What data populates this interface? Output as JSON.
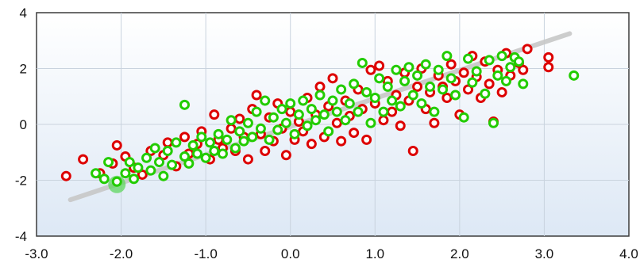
{
  "chart_data": {
    "type": "scatter",
    "title": "",
    "xlabel": "",
    "ylabel": "",
    "xlim": [
      -3,
      4
    ],
    "ylim": [
      -4,
      4
    ],
    "x_ticks": [
      "-3.0",
      "-2.0",
      "-1.0",
      "0.0",
      "1.0",
      "2.0",
      "3.0",
      "4.0"
    ],
    "y_ticks": [
      "-4",
      "-2",
      "0",
      "2",
      "4"
    ],
    "grid": true,
    "legend": "none",
    "series": [
      {
        "color": "#dd0000",
        "points": [
          [
            -2.65,
            -1.85
          ],
          [
            -2.45,
            -1.25
          ],
          [
            -2.25,
            -1.75
          ],
          [
            -2.1,
            -1.4
          ],
          [
            -2.05,
            -0.75
          ],
          [
            -1.95,
            -1.15
          ],
          [
            -1.85,
            -1.55
          ],
          [
            -1.75,
            -1.8
          ],
          [
            -1.65,
            -0.95
          ],
          [
            -1.5,
            -1.1
          ],
          [
            -1.45,
            -0.65
          ],
          [
            -1.35,
            -1.5
          ],
          [
            -1.25,
            -0.45
          ],
          [
            -1.2,
            -1.05
          ],
          [
            -1.1,
            -0.7
          ],
          [
            -1.05,
            -0.25
          ],
          [
            -0.95,
            -1.25
          ],
          [
            -0.9,
            0.35
          ],
          [
            -0.85,
            -0.55
          ],
          [
            -0.8,
            -0.85
          ],
          [
            -0.7,
            -0.15
          ],
          [
            -0.65,
            -0.95
          ],
          [
            -0.6,
            0.2
          ],
          [
            -0.55,
            -0.45
          ],
          [
            -0.5,
            -1.25
          ],
          [
            -0.45,
            0.55
          ],
          [
            -0.4,
            1.05
          ],
          [
            -0.35,
            -0.35
          ],
          [
            -0.3,
            -0.95
          ],
          [
            -0.25,
            0.25
          ],
          [
            -0.2,
            -0.6
          ],
          [
            -0.15,
            0.75
          ],
          [
            -0.1,
            -0.15
          ],
          [
            -0.05,
            -1.1
          ],
          [
            0.0,
            0.45
          ],
          [
            0.05,
            -0.55
          ],
          [
            0.1,
            0.1
          ],
          [
            0.15,
            -0.25
          ],
          [
            0.2,
            0.95
          ],
          [
            0.25,
            -0.7
          ],
          [
            0.3,
            0.35
          ],
          [
            0.35,
            1.35
          ],
          [
            0.4,
            -0.45
          ],
          [
            0.45,
            0.65
          ],
          [
            0.5,
            1.65
          ],
          [
            0.55,
            0.05
          ],
          [
            0.6,
            -0.6
          ],
          [
            0.65,
            0.85
          ],
          [
            0.7,
            0.3
          ],
          [
            0.75,
            -0.3
          ],
          [
            0.8,
            1.25
          ],
          [
            0.85,
            0.55
          ],
          [
            0.9,
            -0.55
          ],
          [
            0.95,
            1.95
          ],
          [
            1.0,
            0.75
          ],
          [
            1.05,
            2.1
          ],
          [
            1.1,
            0.15
          ],
          [
            1.15,
            1.55
          ],
          [
            1.2,
            0.45
          ],
          [
            1.25,
            1.05
          ],
          [
            1.3,
            -0.05
          ],
          [
            1.35,
            1.85
          ],
          [
            1.4,
            0.85
          ],
          [
            1.45,
            -0.95
          ],
          [
            1.5,
            1.35
          ],
          [
            1.55,
            2.0
          ],
          [
            1.6,
            0.55
          ],
          [
            1.65,
            1.15
          ],
          [
            1.7,
            0.05
          ],
          [
            1.75,
            1.75
          ],
          [
            1.8,
            1.35
          ],
          [
            1.85,
            0.95
          ],
          [
            1.9,
            2.15
          ],
          [
            1.95,
            1.55
          ],
          [
            2.0,
            0.35
          ],
          [
            2.05,
            1.85
          ],
          [
            2.1,
            1.25
          ],
          [
            2.15,
            2.45
          ],
          [
            2.2,
            1.7
          ],
          [
            2.25,
            0.95
          ],
          [
            2.3,
            2.25
          ],
          [
            2.35,
            1.45
          ],
          [
            2.4,
            0.1
          ],
          [
            2.45,
            1.95
          ],
          [
            2.5,
            1.15
          ],
          [
            2.55,
            2.55
          ],
          [
            2.6,
            1.75
          ],
          [
            2.7,
            2.2
          ],
          [
            2.75,
            1.95
          ],
          [
            2.8,
            2.7
          ],
          [
            3.05,
            2.4
          ],
          [
            3.05,
            2.05
          ]
        ]
      },
      {
        "color": "#22cc00",
        "points": [
          [
            -2.3,
            -1.75
          ],
          [
            -2.2,
            -1.95
          ],
          [
            -2.15,
            -1.35
          ],
          [
            -2.05,
            -2.05
          ],
          [
            -1.95,
            -1.75
          ],
          [
            -1.9,
            -1.35
          ],
          [
            -1.85,
            -1.95
          ],
          [
            -1.8,
            -1.55
          ],
          [
            -1.7,
            -1.2
          ],
          [
            -1.65,
            -1.65
          ],
          [
            -1.6,
            -0.85
          ],
          [
            -1.55,
            -1.35
          ],
          [
            -1.5,
            -1.85
          ],
          [
            -1.45,
            -0.95
          ],
          [
            -1.4,
            -1.45
          ],
          [
            -1.35,
            -0.65
          ],
          [
            -1.25,
            0.7
          ],
          [
            -1.25,
            -1.15
          ],
          [
            -1.2,
            -1.4
          ],
          [
            -1.15,
            -0.75
          ],
          [
            -1.1,
            -1.05
          ],
          [
            -1.05,
            -0.45
          ],
          [
            -1.0,
            -1.2
          ],
          [
            -0.95,
            -0.65
          ],
          [
            -0.9,
            -0.95
          ],
          [
            -0.85,
            -0.35
          ],
          [
            -0.8,
            -1.05
          ],
          [
            -0.75,
            -0.55
          ],
          [
            -0.7,
            0.15
          ],
          [
            -0.65,
            -0.85
          ],
          [
            -0.6,
            -0.25
          ],
          [
            -0.55,
            -0.6
          ],
          [
            -0.5,
            0.05
          ],
          [
            -0.45,
            -0.45
          ],
          [
            -0.4,
            0.45
          ],
          [
            -0.35,
            -0.15
          ],
          [
            -0.3,
            0.85
          ],
          [
            -0.25,
            -0.55
          ],
          [
            -0.2,
            0.25
          ],
          [
            -0.15,
            -0.2
          ],
          [
            -0.1,
            0.55
          ],
          [
            -0.05,
            0.05
          ],
          [
            0.0,
            0.75
          ],
          [
            0.05,
            -0.35
          ],
          [
            0.1,
            0.35
          ],
          [
            0.15,
            0.85
          ],
          [
            0.2,
            -0.05
          ],
          [
            0.25,
            0.55
          ],
          [
            0.3,
            0.15
          ],
          [
            0.35,
            1.05
          ],
          [
            0.4,
            0.35
          ],
          [
            0.45,
            -0.25
          ],
          [
            0.5,
            0.85
          ],
          [
            0.55,
            0.45
          ],
          [
            0.6,
            1.25
          ],
          [
            0.65,
            0.15
          ],
          [
            0.7,
            0.75
          ],
          [
            0.75,
            1.45
          ],
          [
            0.8,
            0.45
          ],
          [
            0.85,
            2.2
          ],
          [
            0.9,
            1.15
          ],
          [
            0.95,
            0.05
          ],
          [
            1.0,
            0.95
          ],
          [
            1.05,
            1.65
          ],
          [
            1.1,
            0.45
          ],
          [
            1.15,
            1.35
          ],
          [
            1.2,
            0.85
          ],
          [
            1.25,
            1.95
          ],
          [
            1.3,
            0.65
          ],
          [
            1.35,
            1.55
          ],
          [
            1.4,
            2.05
          ],
          [
            1.45,
            1.05
          ],
          [
            1.5,
            1.75
          ],
          [
            1.55,
            0.75
          ],
          [
            1.6,
            2.15
          ],
          [
            1.65,
            1.35
          ],
          [
            1.7,
            0.45
          ],
          [
            1.75,
            1.95
          ],
          [
            1.8,
            1.25
          ],
          [
            1.85,
            2.45
          ],
          [
            1.9,
            1.65
          ],
          [
            1.95,
            1.05
          ],
          [
            2.05,
            0.25
          ],
          [
            2.1,
            2.35
          ],
          [
            2.15,
            1.5
          ],
          [
            2.2,
            1.9
          ],
          [
            2.3,
            1.1
          ],
          [
            2.35,
            2.3
          ],
          [
            2.4,
            0.05
          ],
          [
            2.45,
            1.75
          ],
          [
            2.5,
            2.45
          ],
          [
            2.55,
            1.55
          ],
          [
            2.6,
            2.05
          ],
          [
            2.65,
            2.4
          ],
          [
            2.7,
            2.25
          ],
          [
            2.75,
            1.45
          ],
          [
            3.35,
            1.75
          ]
        ]
      }
    ],
    "trend_line": {
      "color": "#c8c8c8",
      "from": [
        -2.6,
        -2.7
      ],
      "to": [
        3.3,
        3.25
      ]
    },
    "highlight_point": {
      "color": "#5fd65f",
      "x": -2.05,
      "y": -2.15
    }
  }
}
